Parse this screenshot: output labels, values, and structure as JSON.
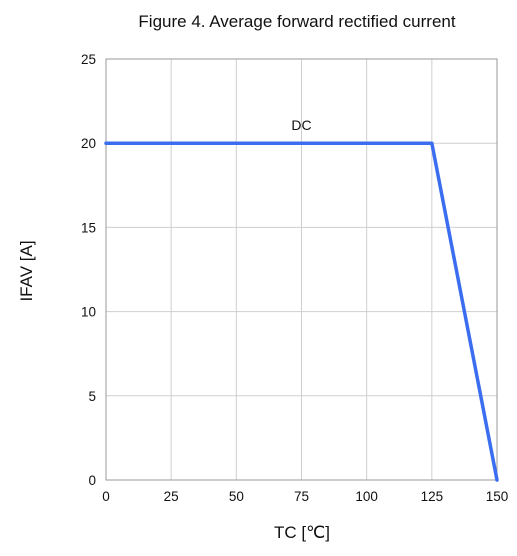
{
  "chart_data": {
    "type": "line",
    "title": "Figure 4. Average forward rectified current",
    "xlabel": "TC [℃]",
    "ylabel": "IFAV [A]",
    "xlim": [
      0,
      150
    ],
    "ylim": [
      0,
      25
    ],
    "xticks": [
      0,
      25,
      50,
      75,
      100,
      125,
      150
    ],
    "yticks": [
      0,
      5,
      10,
      15,
      20,
      25
    ],
    "grid": true,
    "series": [
      {
        "name": "DC",
        "color": "#3a6df0",
        "x": [
          0,
          125,
          150
        ],
        "y": [
          20,
          20,
          0
        ]
      }
    ],
    "annotations": [
      {
        "text": "DC",
        "x": 75,
        "y": 20
      }
    ]
  }
}
